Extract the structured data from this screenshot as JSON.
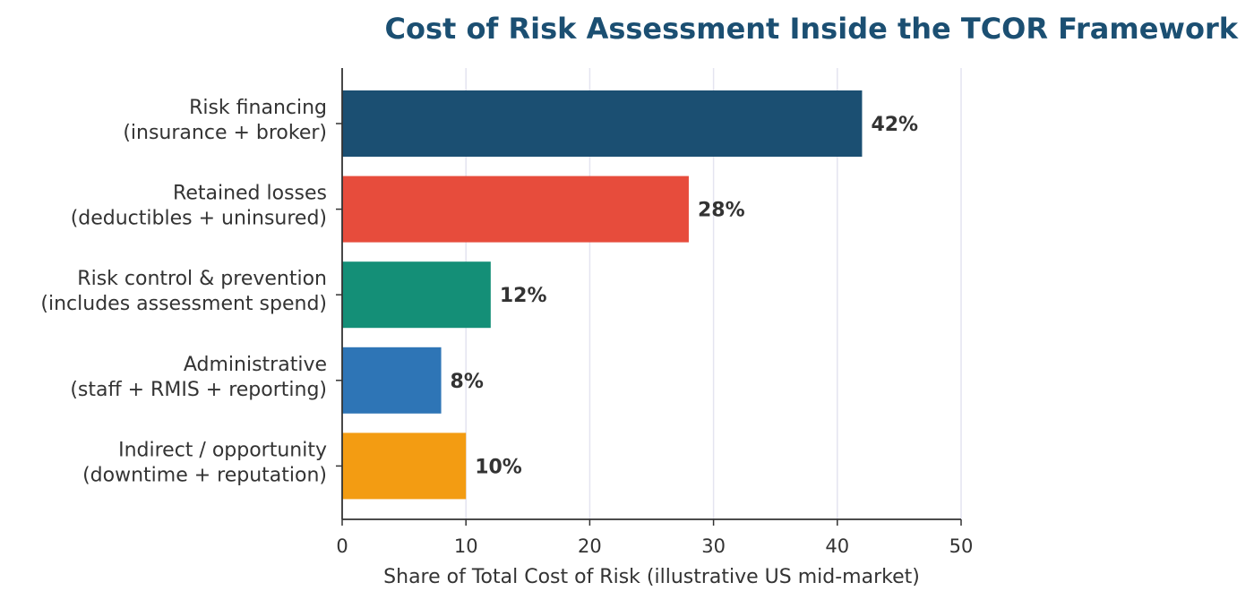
{
  "chart_data": {
    "type": "bar",
    "orientation": "horizontal",
    "title": "Cost of Risk Assessment Inside the TCOR Framework",
    "xlabel": "Share of Total Cost of Risk (illustrative US mid-market)",
    "ylabel": "",
    "xlim": [
      0,
      50
    ],
    "xticks": [
      0,
      10,
      20,
      30,
      40,
      50
    ],
    "grid": "vertical",
    "categories": [
      [
        "Risk financing",
        "(insurance + broker)"
      ],
      [
        "Retained losses",
        "(deductibles + uninsured)"
      ],
      [
        "Risk control & prevention",
        "(includes assessment spend)"
      ],
      [
        "Administrative",
        "(staff + RMIS + reporting)"
      ],
      [
        "Indirect / opportunity",
        "(downtime + reputation)"
      ]
    ],
    "values": [
      42,
      28,
      12,
      8,
      10
    ],
    "data_labels": [
      "42%",
      "28%",
      "12%",
      "8%",
      "10%"
    ],
    "colors": [
      "#1b4f72",
      "#e74c3c",
      "#148f77",
      "#2e75b6",
      "#f39c12"
    ]
  }
}
